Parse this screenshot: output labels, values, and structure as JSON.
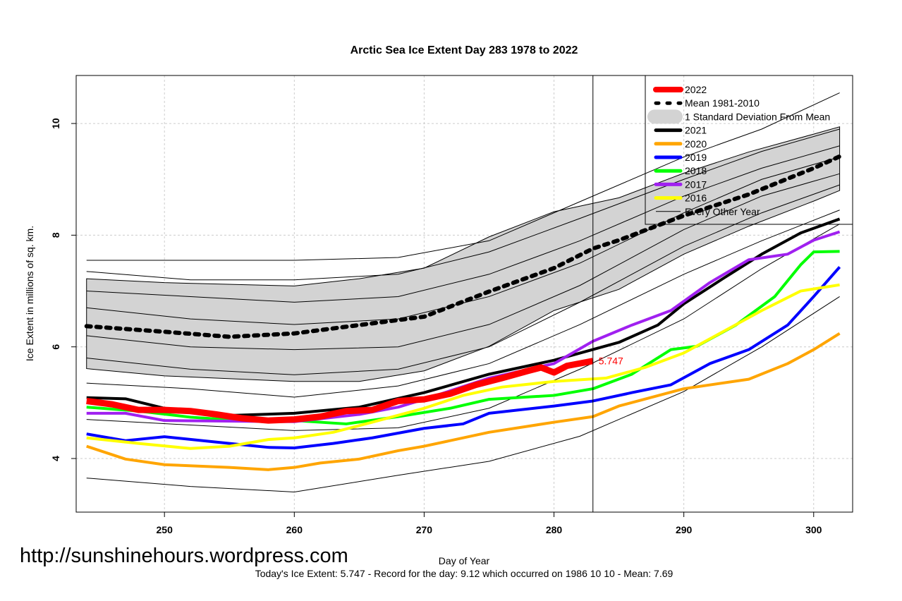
{
  "chart_data": {
    "type": "line",
    "title": "Arctic Sea Ice Extent Day 283 1978 to 2022",
    "xlabel": "Day of Year",
    "ylabel": "Ice Extent in millions of sq. km.",
    "xlim": [
      243.2,
      303
    ],
    "ylim": [
      3.04,
      10.86
    ],
    "xticks": [
      250,
      260,
      270,
      280,
      290,
      300
    ],
    "yticks": [
      4,
      6,
      8,
      10
    ],
    "grid": true,
    "legend_position": "top-right",
    "current_day": 283,
    "current_value_label": "5.747",
    "footer": "Today's Ice Extent: 5.747  - Record for the day: 9.12 which occurred on 1986 10 10  - Mean: 7.69",
    "watermark": "http://sunshinehours.wordpress.com",
    "band": {
      "name": "1 Standard Deviation From Mean",
      "color": "#d3d3d3",
      "days": [
        244,
        250,
        260,
        265,
        270,
        275,
        280,
        285,
        290,
        295,
        300,
        302
      ],
      "upper": [
        7.22,
        7.15,
        7.09,
        7.22,
        7.41,
        7.97,
        8.42,
        8.67,
        9.11,
        9.49,
        9.81,
        9.94
      ],
      "lower": [
        5.61,
        5.48,
        5.38,
        5.38,
        5.57,
        6.01,
        6.65,
        7.03,
        7.66,
        8.16,
        8.61,
        8.8
      ]
    },
    "series": [
      {
        "name": "Mean 1981-2010",
        "color": "#000000",
        "style": "dotted",
        "points": [
          [
            244,
            6.37
          ],
          [
            250,
            6.27
          ],
          [
            255,
            6.18
          ],
          [
            260,
            6.24
          ],
          [
            265,
            6.39
          ],
          [
            270,
            6.54
          ],
          [
            275,
            6.99
          ],
          [
            280,
            7.41
          ],
          [
            283,
            7.76
          ],
          [
            285,
            7.91
          ],
          [
            290,
            8.35
          ],
          [
            295,
            8.73
          ],
          [
            300,
            9.2
          ],
          [
            302,
            9.41
          ]
        ]
      },
      {
        "name": "2021",
        "color": "#000000",
        "points": [
          [
            244,
            5.09
          ],
          [
            247,
            5.07
          ],
          [
            250,
            4.9
          ],
          [
            255,
            4.77
          ],
          [
            260,
            4.81
          ],
          [
            265,
            4.92
          ],
          [
            270,
            5.18
          ],
          [
            275,
            5.51
          ],
          [
            280,
            5.76
          ],
          [
            285,
            6.08
          ],
          [
            288,
            6.39
          ],
          [
            290,
            6.77
          ],
          [
            293,
            7.22
          ],
          [
            296,
            7.66
          ],
          [
            299,
            8.04
          ],
          [
            302,
            8.29
          ]
        ]
      },
      {
        "name": "2020",
        "color": "#ffa500",
        "points": [
          [
            244,
            4.22
          ],
          [
            247,
            3.99
          ],
          [
            250,
            3.89
          ],
          [
            255,
            3.84
          ],
          [
            258,
            3.8
          ],
          [
            260,
            3.84
          ],
          [
            262,
            3.92
          ],
          [
            265,
            3.99
          ],
          [
            268,
            4.14
          ],
          [
            270,
            4.22
          ],
          [
            275,
            4.47
          ],
          [
            280,
            4.65
          ],
          [
            283,
            4.75
          ],
          [
            285,
            4.94
          ],
          [
            290,
            5.25
          ],
          [
            295,
            5.42
          ],
          [
            298,
            5.7
          ],
          [
            300,
            5.95
          ],
          [
            302,
            6.24
          ]
        ]
      },
      {
        "name": "2019",
        "color": "#0000ff",
        "points": [
          [
            244,
            4.44
          ],
          [
            247,
            4.32
          ],
          [
            250,
            4.39
          ],
          [
            255,
            4.27
          ],
          [
            258,
            4.2
          ],
          [
            260,
            4.19
          ],
          [
            263,
            4.27
          ],
          [
            266,
            4.37
          ],
          [
            270,
            4.54
          ],
          [
            273,
            4.62
          ],
          [
            275,
            4.81
          ],
          [
            280,
            4.94
          ],
          [
            283,
            5.03
          ],
          [
            286,
            5.18
          ],
          [
            289,
            5.32
          ],
          [
            292,
            5.7
          ],
          [
            295,
            5.95
          ],
          [
            298,
            6.39
          ],
          [
            300,
            6.9
          ],
          [
            302,
            7.43
          ]
        ]
      },
      {
        "name": "2018",
        "color": "#00ff00",
        "points": [
          [
            244,
            4.92
          ],
          [
            248,
            4.85
          ],
          [
            252,
            4.74
          ],
          [
            256,
            4.68
          ],
          [
            260,
            4.68
          ],
          [
            264,
            4.62
          ],
          [
            268,
            4.75
          ],
          [
            272,
            4.9
          ],
          [
            275,
            5.06
          ],
          [
            280,
            5.13
          ],
          [
            283,
            5.25
          ],
          [
            286,
            5.51
          ],
          [
            289,
            5.95
          ],
          [
            291,
            6.01
          ],
          [
            294,
            6.39
          ],
          [
            297,
            6.9
          ],
          [
            299,
            7.47
          ],
          [
            300,
            7.7
          ],
          [
            302,
            7.71
          ]
        ]
      },
      {
        "name": "2017",
        "color": "#a020f0",
        "points": [
          [
            244,
            4.81
          ],
          [
            247,
            4.81
          ],
          [
            250,
            4.68
          ],
          [
            255,
            4.67
          ],
          [
            260,
            4.66
          ],
          [
            265,
            4.79
          ],
          [
            268,
            4.92
          ],
          [
            270,
            5.06
          ],
          [
            275,
            5.44
          ],
          [
            280,
            5.7
          ],
          [
            283,
            6.1
          ],
          [
            286,
            6.39
          ],
          [
            289,
            6.65
          ],
          [
            292,
            7.15
          ],
          [
            295,
            7.56
          ],
          [
            298,
            7.66
          ],
          [
            300,
            7.91
          ],
          [
            302,
            8.06
          ]
        ]
      },
      {
        "name": "2016",
        "color": "#ffff00",
        "points": [
          [
            244,
            4.37
          ],
          [
            248,
            4.27
          ],
          [
            252,
            4.18
          ],
          [
            255,
            4.22
          ],
          [
            258,
            4.34
          ],
          [
            260,
            4.37
          ],
          [
            263,
            4.47
          ],
          [
            266,
            4.65
          ],
          [
            270,
            4.9
          ],
          [
            273,
            5.13
          ],
          [
            276,
            5.28
          ],
          [
            280,
            5.38
          ],
          [
            284,
            5.44
          ],
          [
            287,
            5.63
          ],
          [
            290,
            5.89
          ],
          [
            293,
            6.27
          ],
          [
            296,
            6.65
          ],
          [
            299,
            7.0
          ],
          [
            302,
            7.11
          ]
        ]
      },
      {
        "name": "2022",
        "color": "#ff0000",
        "points": [
          [
            244,
            5.03
          ],
          [
            246,
            4.97
          ],
          [
            248,
            4.87
          ],
          [
            250,
            4.87
          ],
          [
            252,
            4.85
          ],
          [
            254,
            4.79
          ],
          [
            256,
            4.72
          ],
          [
            258,
            4.68
          ],
          [
            260,
            4.7
          ],
          [
            262,
            4.75
          ],
          [
            264,
            4.85
          ],
          [
            266,
            4.87
          ],
          [
            268,
            5.03
          ],
          [
            270,
            5.06
          ],
          [
            272,
            5.16
          ],
          [
            274,
            5.32
          ],
          [
            276,
            5.44
          ],
          [
            278,
            5.57
          ],
          [
            279,
            5.63
          ],
          [
            280,
            5.54
          ],
          [
            281,
            5.66
          ],
          [
            283,
            5.747
          ]
        ]
      }
    ],
    "other_years": {
      "name": "Every Other Year",
      "color": "#000000",
      "days": [
        244,
        252,
        260,
        268,
        275,
        282,
        290,
        296,
        302
      ],
      "lines": [
        [
          7.55,
          7.55,
          7.55,
          7.6,
          7.9,
          8.6,
          9.4,
          9.9,
          10.55
        ],
        [
          7.35,
          7.2,
          7.2,
          7.3,
          7.7,
          8.3,
          9.0,
          9.5,
          9.9
        ],
        [
          7.0,
          6.9,
          6.8,
          6.9,
          7.3,
          7.9,
          8.7,
          9.2,
          9.6
        ],
        [
          6.7,
          6.5,
          6.4,
          6.5,
          6.9,
          7.5,
          8.4,
          9.0,
          9.4
        ],
        [
          6.2,
          6.0,
          5.95,
          6.0,
          6.4,
          7.1,
          8.1,
          8.7,
          9.1
        ],
        [
          5.8,
          5.6,
          5.5,
          5.6,
          6.0,
          6.8,
          7.8,
          8.4,
          8.9
        ],
        [
          5.35,
          5.25,
          5.1,
          5.3,
          5.7,
          6.4,
          7.3,
          7.9,
          8.45
        ],
        [
          4.7,
          4.6,
          4.5,
          4.55,
          4.9,
          5.6,
          6.5,
          7.4,
          8.2
        ],
        [
          3.65,
          3.5,
          3.4,
          3.7,
          3.95,
          4.4,
          5.2,
          6.0,
          6.9
        ]
      ]
    }
  }
}
